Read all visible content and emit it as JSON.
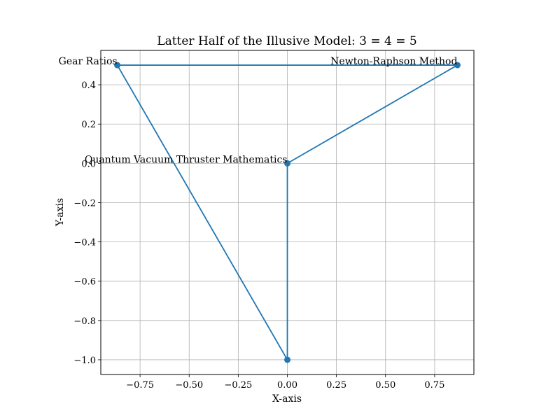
{
  "chart_data": {
    "type": "line",
    "title": "Latter Half of the Illusive Model: 3 = 4 = 5",
    "xlabel": "X-axis",
    "ylabel": "Y-axis",
    "xlim": [
      -0.95,
      0.95
    ],
    "ylim": [
      -1.075,
      0.575
    ],
    "grid": true,
    "color": "#1f77b4",
    "x_ticks": [
      -0.75,
      -0.5,
      -0.25,
      0.0,
      0.25,
      0.5,
      0.75
    ],
    "x_tick_labels": [
      "−0.75",
      "−0.50",
      "−0.25",
      "0.00",
      "0.25",
      "0.50",
      "0.75"
    ],
    "y_ticks": [
      0.4,
      0.2,
      0.0,
      -0.2,
      -0.4,
      -0.6,
      -0.8,
      -1.0
    ],
    "y_tick_labels": [
      "0.4",
      "0.2",
      "0.0",
      "−0.2",
      "−0.4",
      "−0.6",
      "−0.8",
      "−1.0"
    ],
    "path": [
      {
        "x": 0.0,
        "y": 0.0
      },
      {
        "x": 0.866,
        "y": 0.5
      },
      {
        "x": -0.866,
        "y": 0.5
      },
      {
        "x": 0.0,
        "y": -1.0
      },
      {
        "x": 0.0,
        "y": 0.0
      }
    ],
    "points": [
      {
        "x": 0.0,
        "y": 0.0
      },
      {
        "x": 0.866,
        "y": 0.5
      },
      {
        "x": -0.866,
        "y": 0.5
      },
      {
        "x": 0.0,
        "y": -1.0
      }
    ],
    "annotations": [
      {
        "text": "Quantum Vacuum Thruster Mathematics",
        "x": 0.0,
        "y": 0.0
      },
      {
        "text": "Newton-Raphson Method",
        "x": 0.866,
        "y": 0.5
      },
      {
        "text": "Gear Ratios",
        "x": -0.866,
        "y": 0.5
      }
    ]
  }
}
